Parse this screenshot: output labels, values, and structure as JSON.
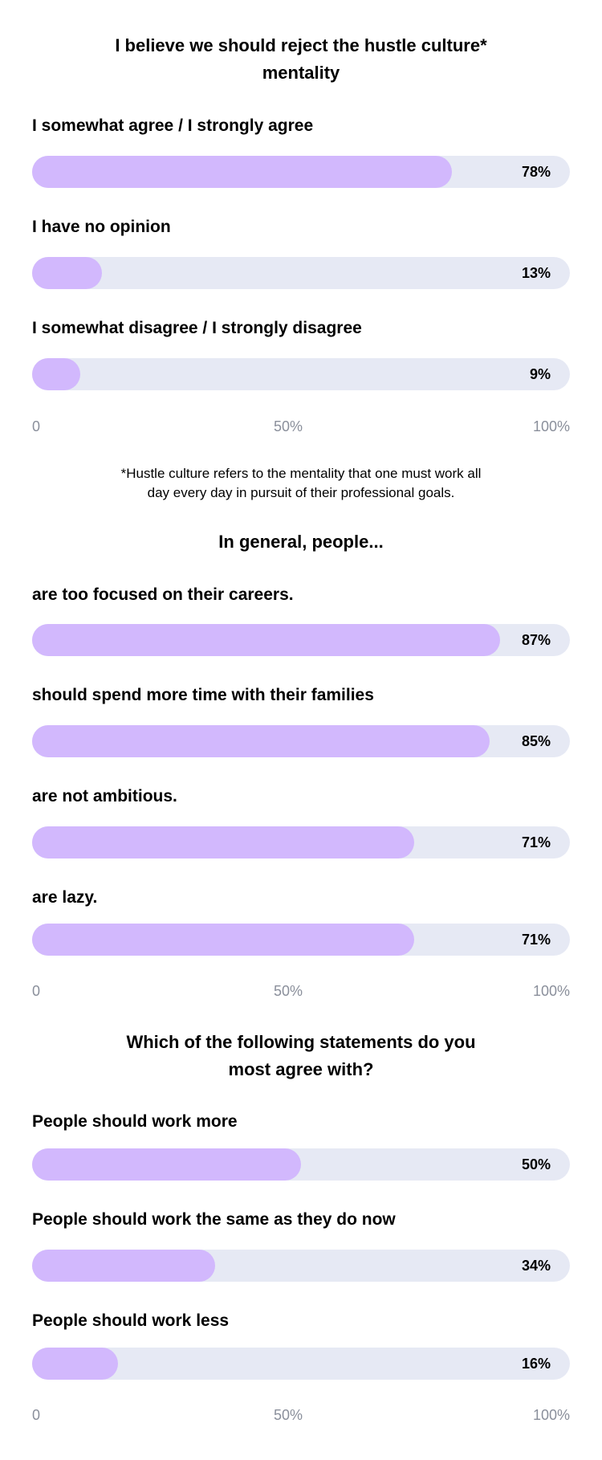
{
  "chart_data": [
    {
      "type": "bar",
      "orientation": "horizontal",
      "title": "I believe we should reject the hustle culture* mentality",
      "categories": [
        "I somewhat agree / I strongly agree",
        "I have no opinion",
        "I somewhat disagree / I strongly disagree"
      ],
      "values": [
        78,
        13,
        9
      ],
      "value_labels": [
        "78%",
        "13%",
        "9%"
      ],
      "xlim": [
        0,
        100
      ],
      "ticks": [
        "0",
        "50%",
        "100%"
      ],
      "footnote": "*Hustle culture refers to the mentality that one must work all day every day in pursuit of their professional goals."
    },
    {
      "type": "bar",
      "orientation": "horizontal",
      "title": "In general, people...",
      "categories": [
        "are too focused on their careers.",
        "should spend more time with their families",
        "are not ambitious.",
        "are lazy."
      ],
      "values": [
        87,
        85,
        71,
        71
      ],
      "value_labels": [
        "87%",
        "85%",
        "71%",
        "71%"
      ],
      "xlim": [
        0,
        100
      ],
      "ticks": [
        "0",
        "50%",
        "100%"
      ]
    },
    {
      "type": "bar",
      "orientation": "horizontal",
      "title": "Which of the following statements do you most agree with?",
      "categories": [
        "People should work more",
        "People should work the same as they do now",
        "People should work less"
      ],
      "values": [
        50,
        34,
        16
      ],
      "value_labels": [
        "50%",
        "34%",
        "16%"
      ],
      "xlim": [
        0,
        100
      ],
      "ticks": [
        "0",
        "50%",
        "100%"
      ]
    }
  ],
  "colors": {
    "bar_fill": "#d2b8fd",
    "track": "#e6e9f4",
    "axis_text": "#8a8f9b"
  }
}
